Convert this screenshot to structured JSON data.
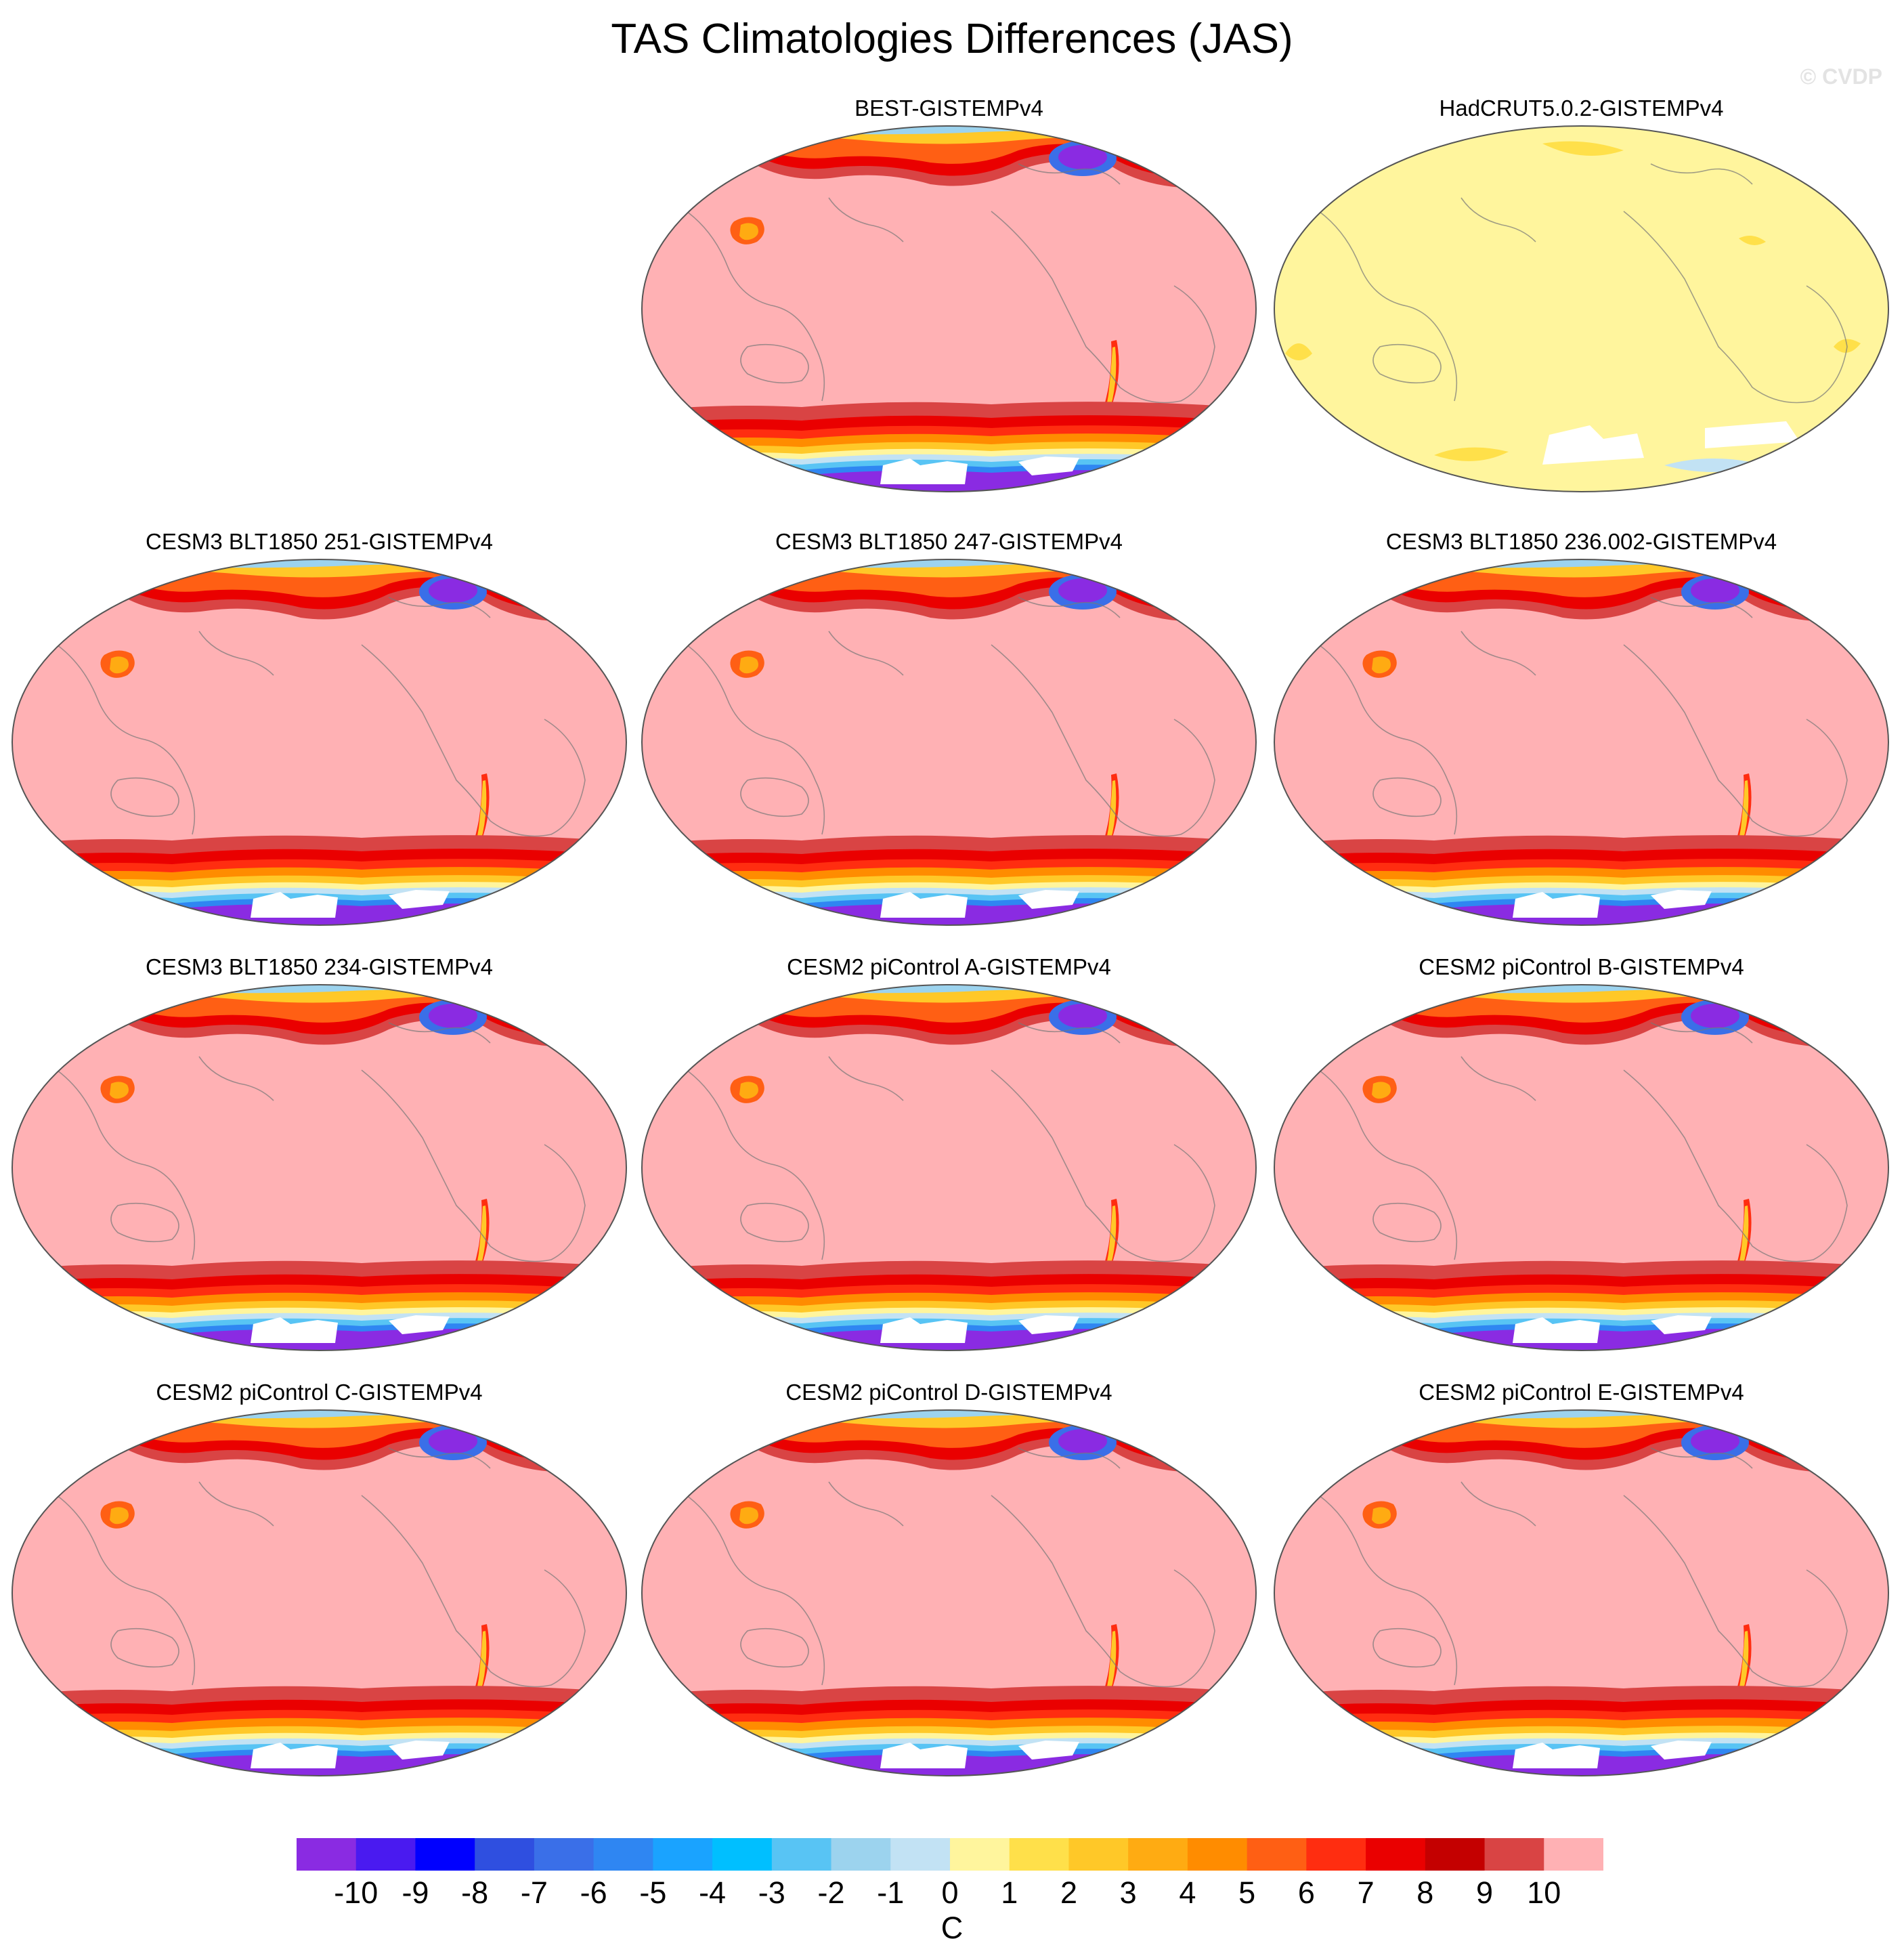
{
  "title": "TAS Climatologies Differences (JAS)",
  "copyright": "© CVDP",
  "panels": [
    {
      "id": "best",
      "title": "BEST-GISTEMPv4",
      "style": "warm"
    },
    {
      "id": "had",
      "title": "HadCRUT5.0.2-GISTEMPv4",
      "style": "neutral"
    },
    {
      "id": "b251",
      "title": "CESM3 BLT1850 251-GISTEMPv4",
      "style": "warm"
    },
    {
      "id": "b247",
      "title": "CESM3 BLT1850 247-GISTEMPv4",
      "style": "warm"
    },
    {
      "id": "b236",
      "title": "CESM3 BLT1850 236.002-GISTEMPv4",
      "style": "warm"
    },
    {
      "id": "b234",
      "title": "CESM3 BLT1850 234-GISTEMPv4",
      "style": "warm"
    },
    {
      "id": "pA",
      "title": "CESM2 piControl A-GISTEMPv4",
      "style": "warm"
    },
    {
      "id": "pB",
      "title": "CESM2 piControl B-GISTEMPv4",
      "style": "warm"
    },
    {
      "id": "pC",
      "title": "CESM2 piControl C-GISTEMPv4",
      "style": "warm"
    },
    {
      "id": "pD",
      "title": "CESM2 piControl D-GISTEMPv4",
      "style": "warm"
    },
    {
      "id": "pE",
      "title": "CESM2 piControl E-GISTEMPv4",
      "style": "warm"
    }
  ],
  "colorbar": {
    "colors": [
      "#8a2be2",
      "#4a1af0",
      "#0000ff",
      "#2f4fe0",
      "#3a6fe8",
      "#2f86f2",
      "#1aa3ff",
      "#00bfff",
      "#58c4f4",
      "#9cd3ee",
      "#c2e2f4",
      "#fff59d",
      "#ffe04a",
      "#ffc828",
      "#ffab12",
      "#ff8c00",
      "#ff5f14",
      "#ff2d10",
      "#ea0000",
      "#c40000",
      "#d94444",
      "#ffb1b4"
    ],
    "tick_labels": [
      "-10",
      "-9",
      "-8",
      "-7",
      "-6",
      "-5",
      "-4",
      "-3",
      "-2",
      "-1",
      "0",
      "1",
      "2",
      "3",
      "4",
      "5",
      "6",
      "7",
      "8",
      "9",
      "10"
    ],
    "units": "C"
  }
}
